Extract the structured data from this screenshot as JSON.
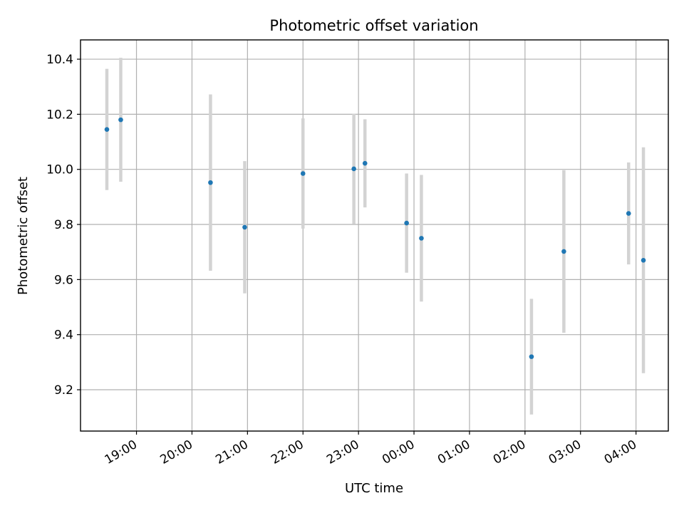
{
  "chart_data": {
    "type": "scatter",
    "title": "Photometric offset variation",
    "xlabel": "UTC time",
    "ylabel": "Photometric offset",
    "x_axis_type": "time",
    "xlim": [
      "18:28",
      "05:00"
    ],
    "ylim": [
      9.05,
      10.47
    ],
    "grid": true,
    "legend": "none",
    "x_ticks": [
      "19:00",
      "20:00",
      "21:00",
      "22:00",
      "23:00",
      "00:00",
      "01:00",
      "02:00",
      "03:00",
      "04:00"
    ],
    "y_ticks": [
      9.2,
      9.4,
      9.6,
      9.8,
      10.0,
      10.2,
      10.4
    ],
    "point_color": "#1f77b4",
    "errorbar_color": "#d3d3d3",
    "points": [
      {
        "time": "18:28",
        "y": 10.145,
        "err": 0.22
      },
      {
        "time": "18:43",
        "y": 10.18,
        "err": 0.225
      },
      {
        "time": "20:20",
        "y": 9.952,
        "err": 0.32
      },
      {
        "time": "20:57",
        "y": 9.79,
        "err": 0.24
      },
      {
        "time": "22:00",
        "y": 9.985,
        "err": 0.2
      },
      {
        "time": "22:55",
        "y": 10.002,
        "err": 0.2
      },
      {
        "time": "23:07",
        "y": 10.022,
        "err": 0.16
      },
      {
        "time": "23:52",
        "y": 9.805,
        "err": 0.18
      },
      {
        "time": "00:08",
        "y": 9.75,
        "err": 0.23
      },
      {
        "time": "02:07",
        "y": 9.32,
        "err": 0.21
      },
      {
        "time": "02:42",
        "y": 9.702,
        "err": 0.295
      },
      {
        "time": "03:52",
        "y": 9.84,
        "err": 0.185
      },
      {
        "time": "04:08",
        "y": 9.67,
        "err": 0.41
      }
    ]
  }
}
